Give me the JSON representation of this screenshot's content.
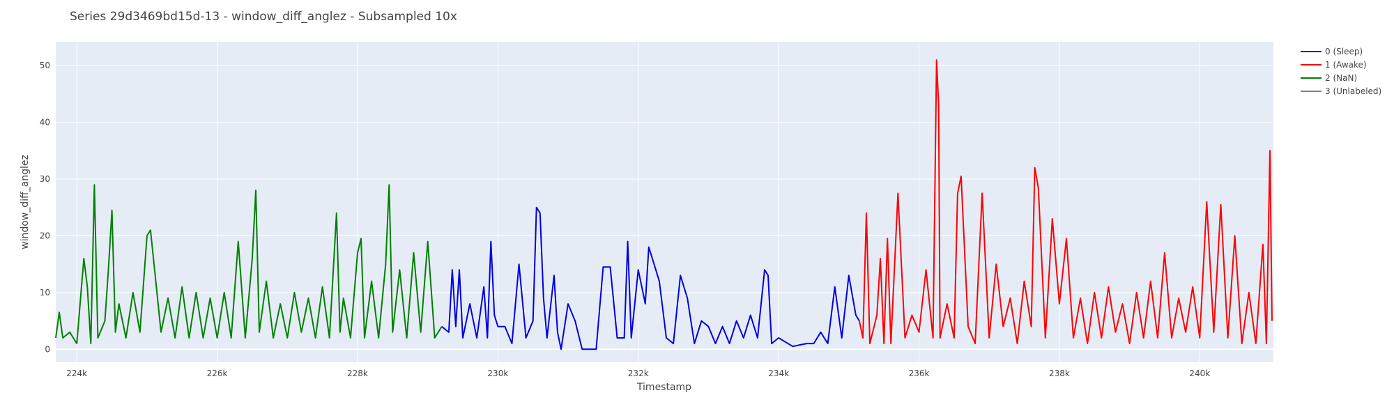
{
  "chart_data": {
    "type": "line",
    "title": "Series 29d3469bd15d-13 - window_diff_anglez - Subsampled 10x",
    "xlabel": "Timestamp",
    "ylabel": "window_diff_anglez",
    "xlim": [
      223700,
      241050
    ],
    "ylim": [
      -2.3,
      54.2
    ],
    "grid": true,
    "legend_position": "top-right",
    "x_ticks": [
      {
        "value": 224000,
        "label": "224k"
      },
      {
        "value": 226000,
        "label": "226k"
      },
      {
        "value": 228000,
        "label": "228k"
      },
      {
        "value": 230000,
        "label": "230k"
      },
      {
        "value": 232000,
        "label": "232k"
      },
      {
        "value": 234000,
        "label": "234k"
      },
      {
        "value": 236000,
        "label": "236k"
      },
      {
        "value": 238000,
        "label": "238k"
      },
      {
        "value": 240000,
        "label": "240k"
      }
    ],
    "y_ticks": [
      {
        "value": 0,
        "label": "0"
      },
      {
        "value": 10,
        "label": "10"
      },
      {
        "value": 20,
        "label": "20"
      },
      {
        "value": 30,
        "label": "30"
      },
      {
        "value": 40,
        "label": "40"
      },
      {
        "value": 50,
        "label": "50"
      }
    ],
    "series": [
      {
        "name": "0 (Sleep)",
        "color": "#0000dd",
        "points": [
          [
            229200,
            4
          ],
          [
            229300,
            3
          ],
          [
            229350,
            14
          ],
          [
            229400,
            4
          ],
          [
            229450,
            14
          ],
          [
            229500,
            2
          ],
          [
            229600,
            8
          ],
          [
            229700,
            2
          ],
          [
            229800,
            11
          ],
          [
            229850,
            2
          ],
          [
            229900,
            19
          ],
          [
            229950,
            6
          ],
          [
            230000,
            4
          ],
          [
            230100,
            4
          ],
          [
            230200,
            1
          ],
          [
            230300,
            15
          ],
          [
            230400,
            2
          ],
          [
            230500,
            5
          ],
          [
            230550,
            25
          ],
          [
            230600,
            24
          ],
          [
            230650,
            9
          ],
          [
            230700,
            2
          ],
          [
            230800,
            13
          ],
          [
            230850,
            3
          ],
          [
            230900,
            0
          ],
          [
            231000,
            8
          ],
          [
            231100,
            5
          ],
          [
            231200,
            0
          ],
          [
            231400,
            0
          ],
          [
            231500,
            14.5
          ],
          [
            231600,
            14.5
          ],
          [
            231700,
            2
          ],
          [
            231800,
            2
          ],
          [
            231850,
            19
          ],
          [
            231900,
            2
          ],
          [
            232000,
            14
          ],
          [
            232100,
            8
          ],
          [
            232150,
            18
          ],
          [
            232200,
            16
          ],
          [
            232300,
            12
          ],
          [
            232400,
            2
          ],
          [
            232500,
            1
          ],
          [
            232600,
            13
          ],
          [
            232700,
            9
          ],
          [
            232800,
            1
          ],
          [
            232900,
            5
          ],
          [
            233000,
            4
          ],
          [
            233100,
            1
          ],
          [
            233200,
            4
          ],
          [
            233300,
            1
          ],
          [
            233400,
            5
          ],
          [
            233500,
            2
          ],
          [
            233600,
            6
          ],
          [
            233700,
            2
          ],
          [
            233800,
            14
          ],
          [
            233850,
            13
          ],
          [
            233900,
            1
          ],
          [
            234000,
            2
          ],
          [
            234200,
            0.5
          ],
          [
            234400,
            1
          ],
          [
            234500,
            1
          ],
          [
            234600,
            3
          ],
          [
            234700,
            1
          ],
          [
            234800,
            11
          ],
          [
            234900,
            2
          ],
          [
            235000,
            13
          ],
          [
            235100,
            6
          ],
          [
            235150,
            5
          ]
        ]
      },
      {
        "name": "1 (Awake)",
        "color": "#ff0000",
        "points": [
          [
            235150,
            5
          ],
          [
            235200,
            2
          ],
          [
            235250,
            24
          ],
          [
            235300,
            1
          ],
          [
            235400,
            6
          ],
          [
            235450,
            16
          ],
          [
            235500,
            1
          ],
          [
            235550,
            19.5
          ],
          [
            235600,
            1
          ],
          [
            235700,
            27.5
          ],
          [
            235800,
            2
          ],
          [
            235900,
            6
          ],
          [
            236000,
            3
          ],
          [
            236100,
            14
          ],
          [
            236200,
            2
          ],
          [
            236250,
            51
          ],
          [
            236280,
            43
          ],
          [
            236300,
            2
          ],
          [
            236400,
            8
          ],
          [
            236500,
            2
          ],
          [
            236550,
            27.5
          ],
          [
            236600,
            30.5
          ],
          [
            236700,
            4
          ],
          [
            236800,
            1
          ],
          [
            236900,
            27.5
          ],
          [
            237000,
            2
          ],
          [
            237100,
            15
          ],
          [
            237200,
            4
          ],
          [
            237300,
            9
          ],
          [
            237400,
            1
          ],
          [
            237500,
            12
          ],
          [
            237600,
            4
          ],
          [
            237650,
            32
          ],
          [
            237700,
            28.5
          ],
          [
            237800,
            2
          ],
          [
            237900,
            23
          ],
          [
            238000,
            8
          ],
          [
            238100,
            19.5
          ],
          [
            238200,
            2
          ],
          [
            238300,
            9
          ],
          [
            238400,
            1
          ],
          [
            238500,
            10
          ],
          [
            238600,
            2
          ],
          [
            238700,
            11
          ],
          [
            238800,
            3
          ],
          [
            238900,
            8
          ],
          [
            239000,
            1
          ],
          [
            239100,
            10
          ],
          [
            239200,
            2
          ],
          [
            239300,
            12
          ],
          [
            239400,
            2
          ],
          [
            239500,
            17
          ],
          [
            239600,
            2
          ],
          [
            239700,
            9
          ],
          [
            239800,
            3
          ],
          [
            239900,
            11
          ],
          [
            240000,
            2
          ],
          [
            240100,
            26
          ],
          [
            240200,
            3
          ],
          [
            240300,
            25.5
          ],
          [
            240400,
            2
          ],
          [
            240500,
            20
          ],
          [
            240600,
            1
          ],
          [
            240700,
            10
          ],
          [
            240800,
            1
          ],
          [
            240900,
            18.5
          ],
          [
            240950,
            1
          ],
          [
            241000,
            35
          ],
          [
            241030,
            5
          ]
        ]
      },
      {
        "name": "2 (NaN)",
        "color": "#008000",
        "points": [
          [
            223700,
            2
          ],
          [
            223750,
            6.5
          ],
          [
            223800,
            2
          ],
          [
            223900,
            3
          ],
          [
            224000,
            1
          ],
          [
            224100,
            16
          ],
          [
            224150,
            11
          ],
          [
            224200,
            1
          ],
          [
            224250,
            29
          ],
          [
            224300,
            2
          ],
          [
            224400,
            5
          ],
          [
            224450,
            14
          ],
          [
            224500,
            24.5
          ],
          [
            224550,
            3
          ],
          [
            224600,
            8
          ],
          [
            224700,
            2
          ],
          [
            224800,
            10
          ],
          [
            224900,
            3
          ],
          [
            225000,
            20
          ],
          [
            225050,
            21
          ],
          [
            225100,
            15
          ],
          [
            225200,
            3
          ],
          [
            225300,
            9
          ],
          [
            225400,
            2
          ],
          [
            225500,
            11
          ],
          [
            225600,
            2
          ],
          [
            225700,
            10
          ],
          [
            225800,
            2
          ],
          [
            225900,
            9
          ],
          [
            226000,
            2
          ],
          [
            226100,
            10
          ],
          [
            226200,
            2
          ],
          [
            226300,
            19
          ],
          [
            226400,
            2
          ],
          [
            226500,
            16
          ],
          [
            226550,
            28
          ],
          [
            226600,
            3
          ],
          [
            226700,
            12
          ],
          [
            226800,
            2
          ],
          [
            226900,
            8
          ],
          [
            227000,
            2
          ],
          [
            227100,
            10
          ],
          [
            227200,
            3
          ],
          [
            227300,
            9
          ],
          [
            227400,
            2
          ],
          [
            227500,
            11
          ],
          [
            227600,
            2
          ],
          [
            227700,
            24
          ],
          [
            227750,
            3
          ],
          [
            227800,
            9
          ],
          [
            227900,
            2
          ],
          [
            228000,
            17
          ],
          [
            228050,
            19.5
          ],
          [
            228100,
            2
          ],
          [
            228200,
            12
          ],
          [
            228300,
            2
          ],
          [
            228400,
            15
          ],
          [
            228450,
            29
          ],
          [
            228500,
            3
          ],
          [
            228600,
            14
          ],
          [
            228700,
            2
          ],
          [
            228800,
            17
          ],
          [
            228900,
            3
          ],
          [
            229000,
            19
          ],
          [
            229100,
            2
          ],
          [
            229200,
            4
          ]
        ]
      },
      {
        "name": "3 (Unlabeled)",
        "color": "#808080",
        "points": []
      }
    ]
  }
}
